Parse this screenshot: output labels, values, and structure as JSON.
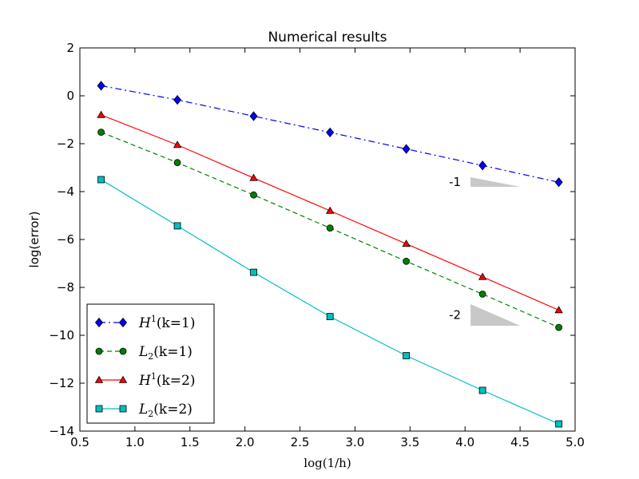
{
  "chart_data": {
    "type": "line",
    "title": "Numerical results",
    "xlabel": "log(1/h)",
    "ylabel": "log(error)",
    "xlim": [
      0.5,
      5.0
    ],
    "ylim": [
      -14,
      2
    ],
    "xticks": [
      0.5,
      1.0,
      1.5,
      2.0,
      2.5,
      3.0,
      3.5,
      4.0,
      4.5,
      5.0
    ],
    "xtick_labels": [
      "0.5",
      "1.0",
      "1.5",
      "2.0",
      "2.5",
      "3.0",
      "3.5",
      "4.0",
      "4.5",
      "5.0"
    ],
    "yticks": [
      2,
      0,
      -2,
      -4,
      -6,
      -8,
      -10,
      -12,
      -14
    ],
    "ytick_labels": [
      "2",
      "0",
      "−2",
      "−4",
      "−6",
      "−8",
      "−10",
      "−12",
      "−14"
    ],
    "grid": false,
    "legend_position": "lower-left",
    "x": [
      0.693,
      1.386,
      2.079,
      2.773,
      3.466,
      4.159,
      4.852
    ],
    "series": [
      {
        "name": "H^1(k=1)",
        "legend_base": "H",
        "legend_sup": "1",
        "legend_args": "(k=1)",
        "color": "#0000ff",
        "linestyle": "dashdot",
        "marker": "diamond",
        "values": [
          0.42,
          -0.17,
          -0.85,
          -1.53,
          -2.22,
          -2.91,
          -3.61
        ]
      },
      {
        "name": "L_2(k=1)",
        "legend_base": "L",
        "legend_sub": "2",
        "legend_args": "(k=1)",
        "color": "#008000",
        "linestyle": "dashed",
        "marker": "circle",
        "values": [
          -1.52,
          -2.79,
          -4.14,
          -5.52,
          -6.91,
          -8.28,
          -9.67
        ]
      },
      {
        "name": "H^1(k=2)",
        "legend_base": "H",
        "legend_sup": "1",
        "legend_args": "(k=2)",
        "color": "#ff0000",
        "linestyle": "solid",
        "marker": "triangle",
        "values": [
          -0.8,
          -2.05,
          -3.43,
          -4.8,
          -6.18,
          -7.56,
          -8.95
        ]
      },
      {
        "name": "L_2(k=2)",
        "legend_base": "L",
        "legend_sub": "2",
        "legend_args": "(k=2)",
        "color": "#00bfbf",
        "linestyle": "solid",
        "marker": "square",
        "values": [
          -3.5,
          -5.43,
          -7.37,
          -9.22,
          -10.85,
          -12.3,
          -13.7
        ]
      }
    ],
    "annotations": [
      {
        "label": "-1",
        "slope": -1,
        "x_start": 4.05,
        "x_end": 4.5,
        "y_top": -3.4,
        "y_bottom": -3.8,
        "fill": "#c8c8c8"
      },
      {
        "label": "-2",
        "slope": -2,
        "x_start": 4.05,
        "x_end": 4.5,
        "y_top": -8.7,
        "y_bottom": -9.6,
        "fill": "#c8c8c8"
      }
    ]
  }
}
